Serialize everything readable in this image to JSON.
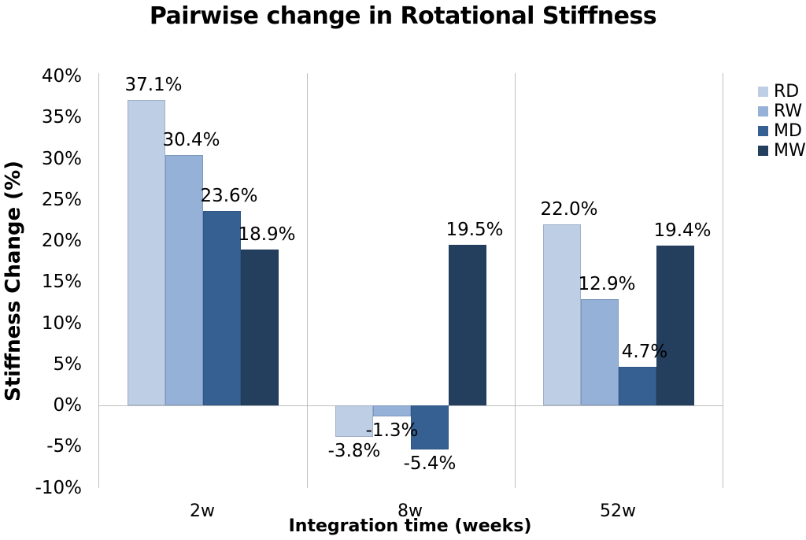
{
  "title": "Pairwise change in Rotational Stiffness",
  "chart_data": {
    "type": "bar",
    "title": "Pairwise change in Rotational Stiffness",
    "xlabel": "Integration time (weeks)",
    "ylabel": "Stiffness Change (%)",
    "categories": [
      "2w",
      "8w",
      "52w"
    ],
    "series": [
      {
        "name": "RD",
        "color": "#BDCEE5",
        "values": [
          37.1,
          -3.8,
          22.0
        ]
      },
      {
        "name": "RW",
        "color": "#95B1D7",
        "values": [
          30.4,
          -1.3,
          12.9
        ]
      },
      {
        "name": "MD",
        "color": "#366091",
        "values": [
          23.6,
          -5.4,
          4.7
        ]
      },
      {
        "name": "MW",
        "color": "#243F5E",
        "values": [
          18.9,
          19.5,
          19.4
        ]
      }
    ],
    "data_labels": [
      [
        "37.1%",
        "30.4%",
        "23.6%",
        "18.9%"
      ],
      [
        "-3.8%",
        "-1.3%",
        "-5.4%",
        "19.5%"
      ],
      [
        "22.0%",
        "12.9%",
        "4.7%",
        "19.4%"
      ]
    ],
    "y_ticks": [
      {
        "label": "40%",
        "value": 40
      },
      {
        "label": "35%",
        "value": 35
      },
      {
        "label": "30%",
        "value": 30
      },
      {
        "label": "25%",
        "value": 25
      },
      {
        "label": "20%",
        "value": 20
      },
      {
        "label": "15%",
        "value": 15
      },
      {
        "label": "10%",
        "value": 10
      },
      {
        "label": "5%",
        "value": 5
      },
      {
        "label": "0%",
        "value": 0
      },
      {
        "label": "-5%",
        "value": -5
      },
      {
        "label": "-10%",
        "value": -10
      }
    ],
    "ylim": [
      -10,
      40
    ],
    "legend": {
      "position": "top-right",
      "entries": [
        "RD",
        "RW",
        "MD",
        "MW"
      ]
    },
    "grid": {
      "horizontal_gridlines": false,
      "zero_line": true,
      "category_separators": true,
      "line_color": "#BFBFBF"
    }
  }
}
